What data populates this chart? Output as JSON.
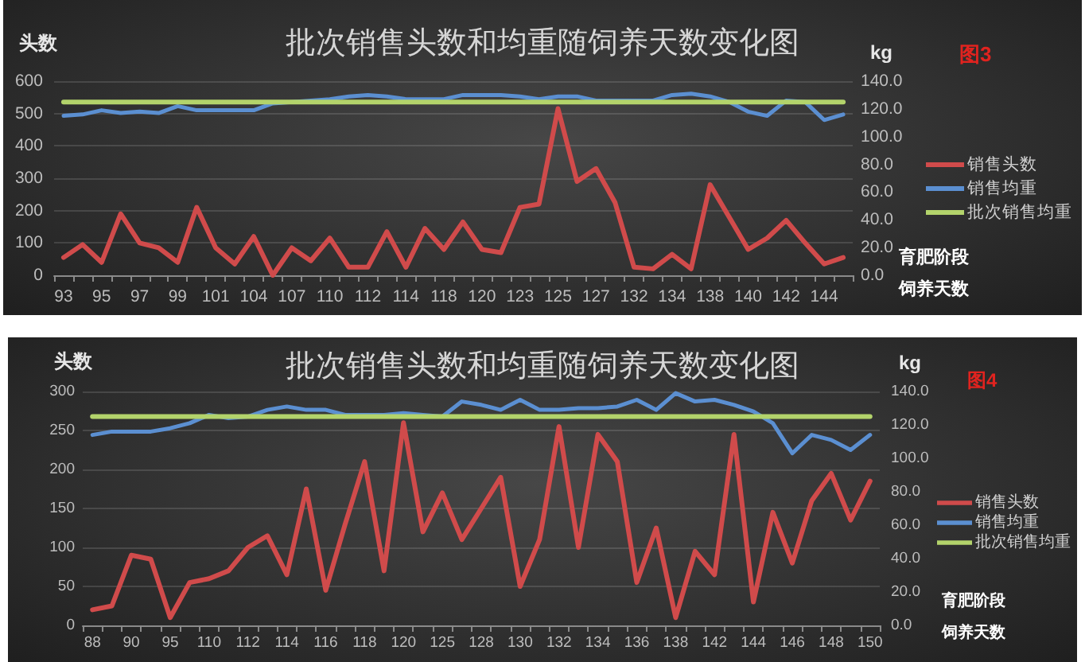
{
  "chart_data": [
    {
      "type": "line",
      "title": "批次销售头数和均重随饲养天数变化图",
      "ylabel": "头数",
      "y2label": "kg",
      "xlabel": "育肥阶段饲养天数",
      "annotations": [
        "图3"
      ],
      "categories": [
        "93",
        null,
        "95",
        null,
        "97",
        null,
        "99",
        null,
        "101",
        null,
        "104",
        null,
        "107",
        null,
        "110",
        null,
        "112",
        null,
        "114",
        null,
        "118",
        null,
        "120",
        null,
        "123",
        null,
        "125",
        null,
        "127",
        null,
        "132",
        null,
        "134",
        null,
        "138",
        null,
        "140",
        null,
        "142",
        null,
        "144",
        null
      ],
      "series": [
        {
          "name": "销售头数",
          "color": "#d04b4b",
          "values": [
            55,
            95,
            40,
            190,
            100,
            85,
            40,
            210,
            85,
            35,
            120,
            0,
            85,
            45,
            115,
            25,
            25,
            135,
            25,
            145,
            80,
            165,
            80,
            70,
            210,
            220,
            515,
            290,
            330,
            225,
            25,
            20,
            65,
            20,
            280,
            180,
            80,
            115,
            170,
            100,
            35,
            55
          ]
        },
        {
          "name": "销售均重",
          "color": "#5b8fd1",
          "axis": "y2",
          "values": [
            115,
            116,
            119,
            117,
            118,
            117,
            122,
            119,
            119,
            119,
            119,
            124,
            125,
            126,
            127,
            129,
            130,
            129,
            127,
            127,
            127,
            130,
            130,
            130,
            129,
            127,
            129,
            129,
            126,
            126,
            126,
            126,
            130,
            131,
            129,
            125,
            118,
            115,
            126,
            125,
            112,
            116
          ]
        },
        {
          "name": "批次销售均重",
          "color": "#b3d36b",
          "axis": "y2",
          "values": [
            125,
            125,
            125,
            125,
            125,
            125,
            125,
            125,
            125,
            125,
            125,
            125,
            125,
            125,
            125,
            125,
            125,
            125,
            125,
            125,
            125,
            125,
            125,
            125,
            125,
            125,
            125,
            125,
            125,
            125,
            125,
            125,
            125,
            125,
            125,
            125,
            125,
            125,
            125,
            125,
            125,
            125
          ]
        }
      ],
      "ylim": [
        0,
        600
      ],
      "yticks": [
        0,
        100,
        200,
        300,
        400,
        500,
        600
      ],
      "y2lim": [
        0,
        140
      ],
      "y2ticks": [
        {
          "value": 0,
          "label": "0.0"
        },
        {
          "value": 20,
          "label": "20.0"
        },
        {
          "value": 40,
          "label": "40.0"
        },
        {
          "value": 60,
          "label": "60.0"
        },
        {
          "value": 80,
          "label": "80.0"
        },
        {
          "value": 100,
          "label": "100.0"
        },
        {
          "value": 120,
          "label": "120.0"
        },
        {
          "value": 140,
          "label": "140.0"
        }
      ],
      "grid": "y",
      "legend": "right"
    },
    {
      "type": "line",
      "title": "批次销售头数和均重随饲养天数变化图",
      "ylabel": "头数",
      "y2label": "kg",
      "xlabel": "育肥阶段饲养天数",
      "annotations": [
        "图4"
      ],
      "categories": [
        "88",
        null,
        "90",
        null,
        "95",
        null,
        "110",
        null,
        "112",
        null,
        "114",
        null,
        "116",
        null,
        "118",
        null,
        "120",
        null,
        "125",
        null,
        "128",
        null,
        "130",
        null,
        "132",
        null,
        "134",
        null,
        "136",
        null,
        "138",
        null,
        "142",
        null,
        "144",
        null,
        "146",
        null,
        "148",
        null,
        "150"
      ],
      "series": [
        {
          "name": "销售头数",
          "color": "#d04b4b",
          "values": [
            20,
            25,
            90,
            85,
            10,
            55,
            60,
            70,
            100,
            115,
            65,
            175,
            45,
            130,
            210,
            70,
            260,
            120,
            170,
            110,
            150,
            190,
            50,
            110,
            255,
            100,
            245,
            210,
            55,
            125,
            10,
            95,
            65,
            245,
            30,
            145,
            80,
            160,
            195,
            135,
            185
          ]
        },
        {
          "name": "销售均重",
          "color": "#5b8fd1",
          "axis": "y2",
          "values": [
            114,
            116,
            116,
            116,
            118,
            121,
            126,
            124,
            125,
            129,
            131,
            129,
            129,
            126,
            126,
            126,
            127,
            126,
            125,
            134,
            132,
            129,
            135,
            129,
            129,
            130,
            130,
            131,
            135,
            129,
            139,
            134,
            135,
            132,
            128,
            121,
            103,
            114,
            111,
            105,
            114
          ]
        },
        {
          "name": "批次销售均重",
          "color": "#b3d36b",
          "axis": "y2",
          "values": [
            125,
            125,
            125,
            125,
            125,
            125,
            125,
            125,
            125,
            125,
            125,
            125,
            125,
            125,
            125,
            125,
            125,
            125,
            125,
            125,
            125,
            125,
            125,
            125,
            125,
            125,
            125,
            125,
            125,
            125,
            125,
            125,
            125,
            125,
            125,
            125,
            125,
            125,
            125,
            125,
            125
          ]
        }
      ],
      "ylim": [
        0,
        300
      ],
      "yticks": [
        0,
        50,
        100,
        150,
        200,
        250,
        300
      ],
      "y2lim": [
        0,
        140
      ],
      "y2ticks": [
        {
          "value": 0,
          "label": "0.0"
        },
        {
          "value": 20,
          "label": "20.0"
        },
        {
          "value": 40,
          "label": "40.0"
        },
        {
          "value": 60,
          "label": "60.0"
        },
        {
          "value": 80,
          "label": "80.0"
        },
        {
          "value": 100,
          "label": "100.0"
        },
        {
          "value": 120,
          "label": "120.0"
        },
        {
          "value": 140,
          "label": "140.0"
        }
      ],
      "grid": "y",
      "legend": "right"
    }
  ]
}
